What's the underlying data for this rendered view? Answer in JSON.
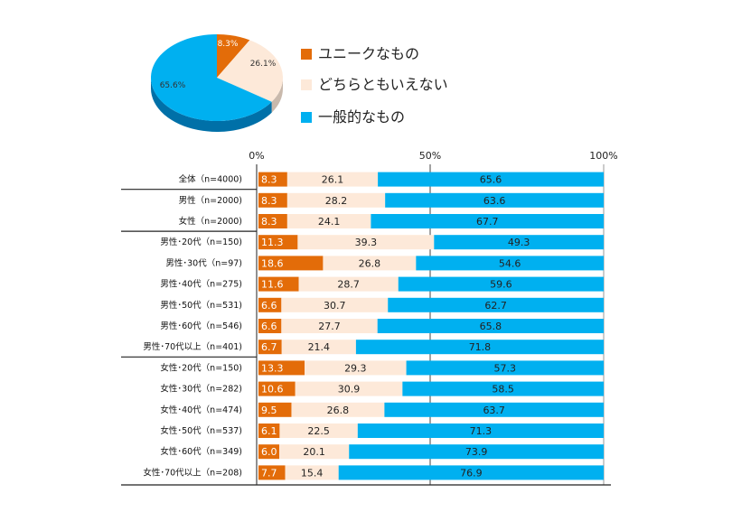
{
  "colors": {
    "unique": "#E36C09",
    "neutral": "#FDE9D9",
    "general": "#00B0F0",
    "pie_side_general": "#0070A8",
    "pie_side_neutral": "#C9B9AC"
  },
  "chart_data": [
    {
      "type": "pie",
      "series": [
        {
          "name": "ユニークなもの",
          "label": "8.3%",
          "value": 8.3
        },
        {
          "name": "どちらともいえない",
          "label": "26.1%",
          "value": 26.1
        },
        {
          "name": "一般的なもの",
          "label": "65.6%",
          "value": 65.6
        }
      ],
      "legend": [
        "ユニークなもの",
        "どちらともいえない",
        "一般的なもの"
      ],
      "legend_position": "right"
    },
    {
      "type": "bar",
      "orientation": "horizontal",
      "stacked": true,
      "xlim": [
        0,
        100
      ],
      "ticks": [
        "0%",
        "50%",
        "100%"
      ],
      "categories": [
        "全体（n=4000)",
        "男性（n=2000)",
        "女性（n=2000)",
        "男性･20代（n=150)",
        "男性･30代（n=97)",
        "男性･40代（n=275)",
        "男性･50代（n=531)",
        "男性･60代（n=546)",
        "男性･70代以上（n=401)",
        "女性･20代（n=150)",
        "女性･30代（n=282)",
        "女性･40代（n=474)",
        "女性･50代（n=537)",
        "女性･60代（n=349)",
        "女性･70代以上（n=208)"
      ],
      "series": [
        {
          "name": "ユニークなもの",
          "values": [
            8.3,
            8.3,
            8.3,
            11.3,
            18.6,
            11.6,
            6.6,
            6.6,
            6.7,
            13.3,
            10.6,
            9.5,
            6.1,
            6.0,
            7.7
          ],
          "labels": [
            "8.3",
            "8.3",
            "8.3",
            "11.3",
            "18.6",
            "11.6",
            "6.6",
            "6.6",
            "6.7",
            "13.3",
            "10.6",
            "9.5",
            "6.1",
            "6.0",
            "7.7"
          ]
        },
        {
          "name": "どちらともいえない",
          "values": [
            26.1,
            28.2,
            24.1,
            39.3,
            26.8,
            28.7,
            30.7,
            27.7,
            21.4,
            29.3,
            30.9,
            26.8,
            22.5,
            20.1,
            15.4
          ],
          "labels": [
            "26.1",
            "28.2",
            "24.1",
            "39.3",
            "26.8",
            "28.7",
            "30.7",
            "27.7",
            "21.4",
            "29.3",
            "30.9",
            "26.8",
            "22.5",
            "20.1",
            "15.4"
          ]
        },
        {
          "name": "一般的なもの",
          "values": [
            65.6,
            63.6,
            67.7,
            49.3,
            54.6,
            59.6,
            62.7,
            65.8,
            71.8,
            57.3,
            58.5,
            63.7,
            71.3,
            73.9,
            76.9
          ],
          "labels": [
            "65.6",
            "63.6",
            "67.7",
            "49.3",
            "54.6",
            "59.6",
            "62.7",
            "65.8",
            "71.8",
            "57.3",
            "58.5",
            "63.7",
            "71.3",
            "73.9",
            "76.9"
          ]
        }
      ],
      "group_dividers_after": [
        0,
        2,
        8
      ]
    }
  ]
}
